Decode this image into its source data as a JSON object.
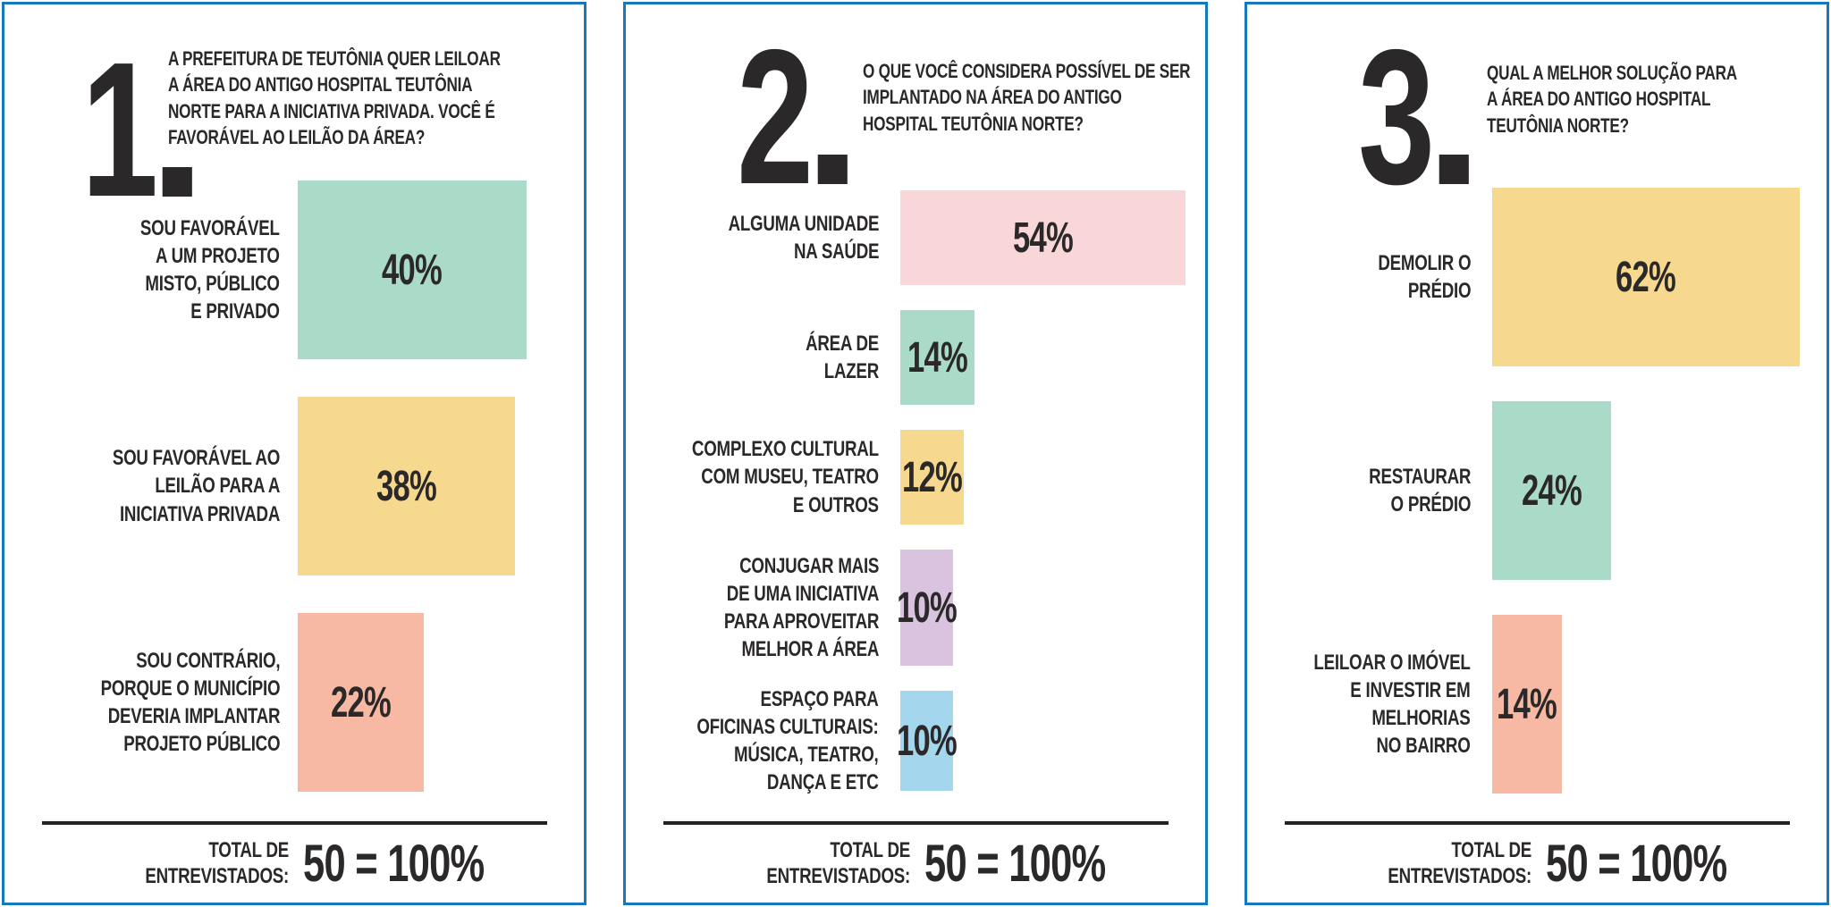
{
  "colors": {
    "border_blue": "#1778be",
    "text_dark": "#2b2829",
    "teal": "#aadbc8",
    "yellow": "#f6d88e",
    "salmon": "#f8b9a4",
    "pink": "#f9d6d8",
    "lavender": "#d9c3de",
    "light_blue": "#a4d6ee"
  },
  "panels": [
    {
      "number": "1",
      "question": "A PREFEITURA DE TEUTÔNIA QUER LEILOAR\nA ÁREA DO ANTIGO HOSPITAL TEUTÔNIA\nNORTE PARA A INICIATIVA PRIVADA. VOCÊ É\nFAVORÁVEL AO LEILÃO DA ÁREA?",
      "bars": [
        {
          "label": "SOU FAVORÁVEL\nA UM PROJETO\nMISTO, PÚBLICO\nE PRIVADO",
          "value": 40,
          "display": "40%",
          "color": "#aadbc8"
        },
        {
          "label": "SOU FAVORÁVEL AO\nLEILÃO PARA A\nINICIATIVA PRIVADA",
          "value": 38,
          "display": "38%",
          "color": "#f6d88e"
        },
        {
          "label": "SOU CONTRÁRIO,\nPORQUE O MUNICÍPIO\nDEVERIA IMPLANTAR\nPROJETO PÚBLICO",
          "value": 22,
          "display": "22%",
          "color": "#f8b9a4"
        }
      ],
      "total_label": "TOTAL DE\nENTREVISTADOS:",
      "total_value": "50 = 100%"
    },
    {
      "number": "2",
      "question": "O QUE VOCÊ CONSIDERA POSSÍVEL DE SER\nIMPLANTADO NA ÁREA DO ANTIGO\nHOSPITAL TEUTÔNIA NORTE?",
      "bars": [
        {
          "label": "ALGUMA UNIDADE\nNA SAÚDE",
          "value": 54,
          "display": "54%",
          "color": "#f9d6d8"
        },
        {
          "label": "ÁREA DE\nLAZER",
          "value": 14,
          "display": "14%",
          "color": "#aadbc8"
        },
        {
          "label": "COMPLEXO CULTURAL\nCOM MUSEU, TEATRO\nE OUTROS",
          "value": 12,
          "display": "12%",
          "color": "#f6d88e"
        },
        {
          "label": "CONJUGAR MAIS\nDE UMA INICIATIVA\nPARA APROVEITAR\nMELHOR A ÁREA",
          "value": 10,
          "display": "10%",
          "color": "#d9c3de"
        },
        {
          "label": "ESPAÇO PARA\nOFICINAS CULTURAIS:\nMÚSICA, TEATRO,\nDANÇA E ETC",
          "value": 10,
          "display": "10%",
          "color": "#a4d6ee"
        }
      ],
      "total_label": "TOTAL DE\nENTREVISTADOS:",
      "total_value": "50 = 100%"
    },
    {
      "number": "3",
      "question": "QUAL A MELHOR SOLUÇÃO PARA\nA ÁREA DO ANTIGO HOSPITAL\nTEUTÔNIA NORTE?",
      "bars": [
        {
          "label": "DEMOLIR O\nPRÉDIO",
          "value": 62,
          "display": "62%",
          "color": "#f6d88e"
        },
        {
          "label": "RESTAURAR\nO PRÉDIO",
          "value": 24,
          "display": "24%",
          "color": "#aadbc8"
        },
        {
          "label": "LEILOAR O IMÓVEL\nE INVESTIR EM\nMELHORIAS\nNO BAIRRO",
          "value": 14,
          "display": "14%",
          "color": "#f8b9a4"
        }
      ],
      "total_label": "TOTAL DE\nENTREVISTADOS:",
      "total_value": "50 = 100%"
    }
  ],
  "chart_data": [
    {
      "type": "bar",
      "orientation": "horizontal",
      "title": "1. A PREFEITURA DE TEUTÔNIA QUER LEILOAR A ÁREA DO ANTIGO HOSPITAL TEUTÔNIA NORTE PARA A INICIATIVA PRIVADA. VOCÊ É FAVORÁVEL AO LEILÃO DA ÁREA?",
      "categories": [
        "SOU FAVORÁVEL A UM PROJETO MISTO, PÚBLICO E PRIVADO",
        "SOU FAVORÁVEL AO LEILÃO PARA A INICIATIVA PRIVADA",
        "SOU CONTRÁRIO, PORQUE O MUNICÍPIO DEVERIA IMPLANTAR PROJETO PÚBLICO"
      ],
      "values": [
        40,
        38,
        22
      ],
      "unit": "%",
      "bar_colors": [
        "#aadbc8",
        "#f6d88e",
        "#f8b9a4"
      ],
      "data_labels": "inside bars",
      "grid": false,
      "annotation": "TOTAL DE ENTREVISTADOS: 50 = 100%"
    },
    {
      "type": "bar",
      "orientation": "horizontal",
      "title": "2. O QUE VOCÊ CONSIDERA POSSÍVEL DE SER IMPLANTADO NA ÁREA DO ANTIGO HOSPITAL TEUTÔNIA NORTE?",
      "categories": [
        "ALGUMA UNIDADE NA SAÚDE",
        "ÁREA DE LAZER",
        "COMPLEXO CULTURAL COM MUSEU, TEATRO E OUTROS",
        "CONJUGAR MAIS DE UMA INICIATIVA PARA APROVEITAR MELHOR A ÁREA",
        "ESPAÇO PARA OFICINAS CULTURAIS: MÚSICA, TEATRO, DANÇA E ETC"
      ],
      "values": [
        54,
        14,
        12,
        10,
        10
      ],
      "unit": "%",
      "bar_colors": [
        "#f9d6d8",
        "#aadbc8",
        "#f6d88e",
        "#d9c3de",
        "#a4d6ee"
      ],
      "data_labels": "inside bars",
      "grid": false,
      "annotation": "TOTAL DE ENTREVISTADOS: 50 = 100%"
    },
    {
      "type": "bar",
      "orientation": "horizontal",
      "title": "3. QUAL A MELHOR SOLUÇÃO PARA A ÁREA DO ANTIGO HOSPITAL TEUTÔNIA NORTE?",
      "categories": [
        "DEMOLIR O PRÉDIO",
        "RESTAURAR O PRÉDIO",
        "LEILOAR O IMÓVEL E INVESTIR EM MELHORIAS NO BAIRRO"
      ],
      "values": [
        62,
        24,
        14
      ],
      "unit": "%",
      "bar_colors": [
        "#f6d88e",
        "#aadbc8",
        "#f8b9a4"
      ],
      "data_labels": "inside bars",
      "grid": false,
      "annotation": "TOTAL DE ENTREVISTADOS: 50 = 100%"
    }
  ]
}
